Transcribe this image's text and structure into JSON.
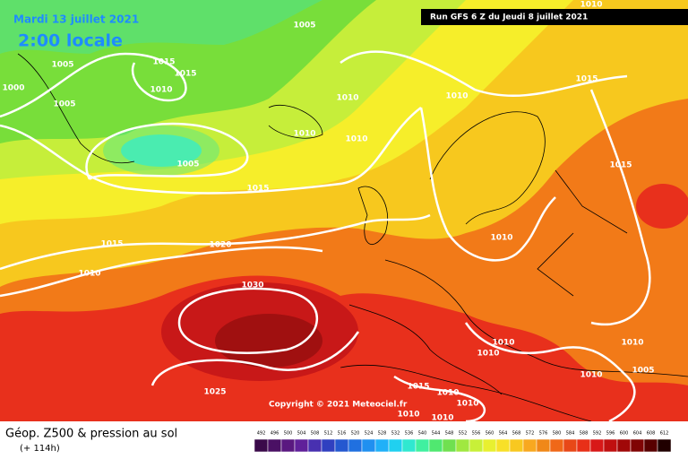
{
  "header": {
    "date": "Mardi 13 juillet 2021",
    "time": "2:00 locale",
    "run": "Run GFS 6 Z du Jeudi 8 juillet 2021"
  },
  "copyright": "Copyright © 2021 Meteociel.fr",
  "footer": {
    "title": "Géop. Z500 & pression au sol",
    "lead": "(+ 114h)"
  },
  "isobar_labels": [
    1005,
    1005,
    1015,
    1015,
    1010,
    1000,
    1005,
    1010,
    1010,
    1015,
    1010,
    1010,
    1005,
    1015,
    1015,
    1015,
    1020,
    1010,
    1010,
    1030,
    1010,
    1010,
    1010,
    1010,
    1005,
    1015,
    1010,
    1025,
    1010,
    1010,
    1010,
    1010
  ],
  "colorbar": {
    "labels": [
      492,
      496,
      500,
      504,
      508,
      512,
      516,
      520,
      524,
      528,
      532,
      536,
      540,
      544,
      548,
      552,
      556,
      560,
      564,
      568,
      572,
      576,
      580,
      584,
      588,
      592,
      596,
      600,
      604,
      608,
      612
    ]
  }
}
